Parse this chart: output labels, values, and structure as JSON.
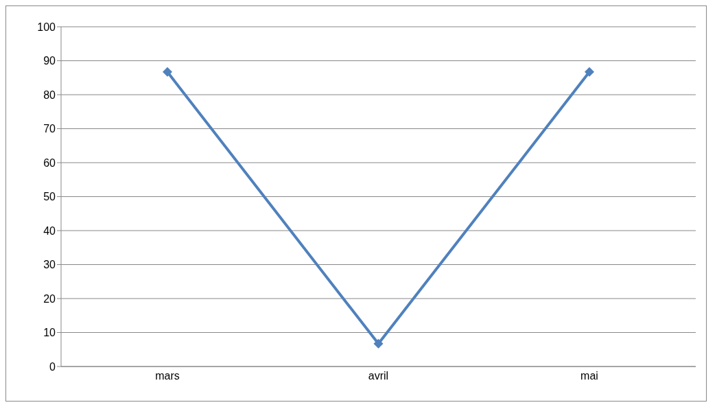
{
  "chart_data": {
    "type": "line",
    "categories": [
      "mars",
      "avril",
      "mai"
    ],
    "series": [
      {
        "color": "#4f81bd",
        "values": [
          86.7,
          6.7,
          86.7
        ]
      }
    ],
    "ylim": [
      0,
      100
    ],
    "yticks": [
      0,
      10,
      20,
      30,
      40,
      50,
      60,
      70,
      80,
      90,
      100
    ],
    "grid": "y",
    "marker": "diamond",
    "line_style": "solid"
  }
}
